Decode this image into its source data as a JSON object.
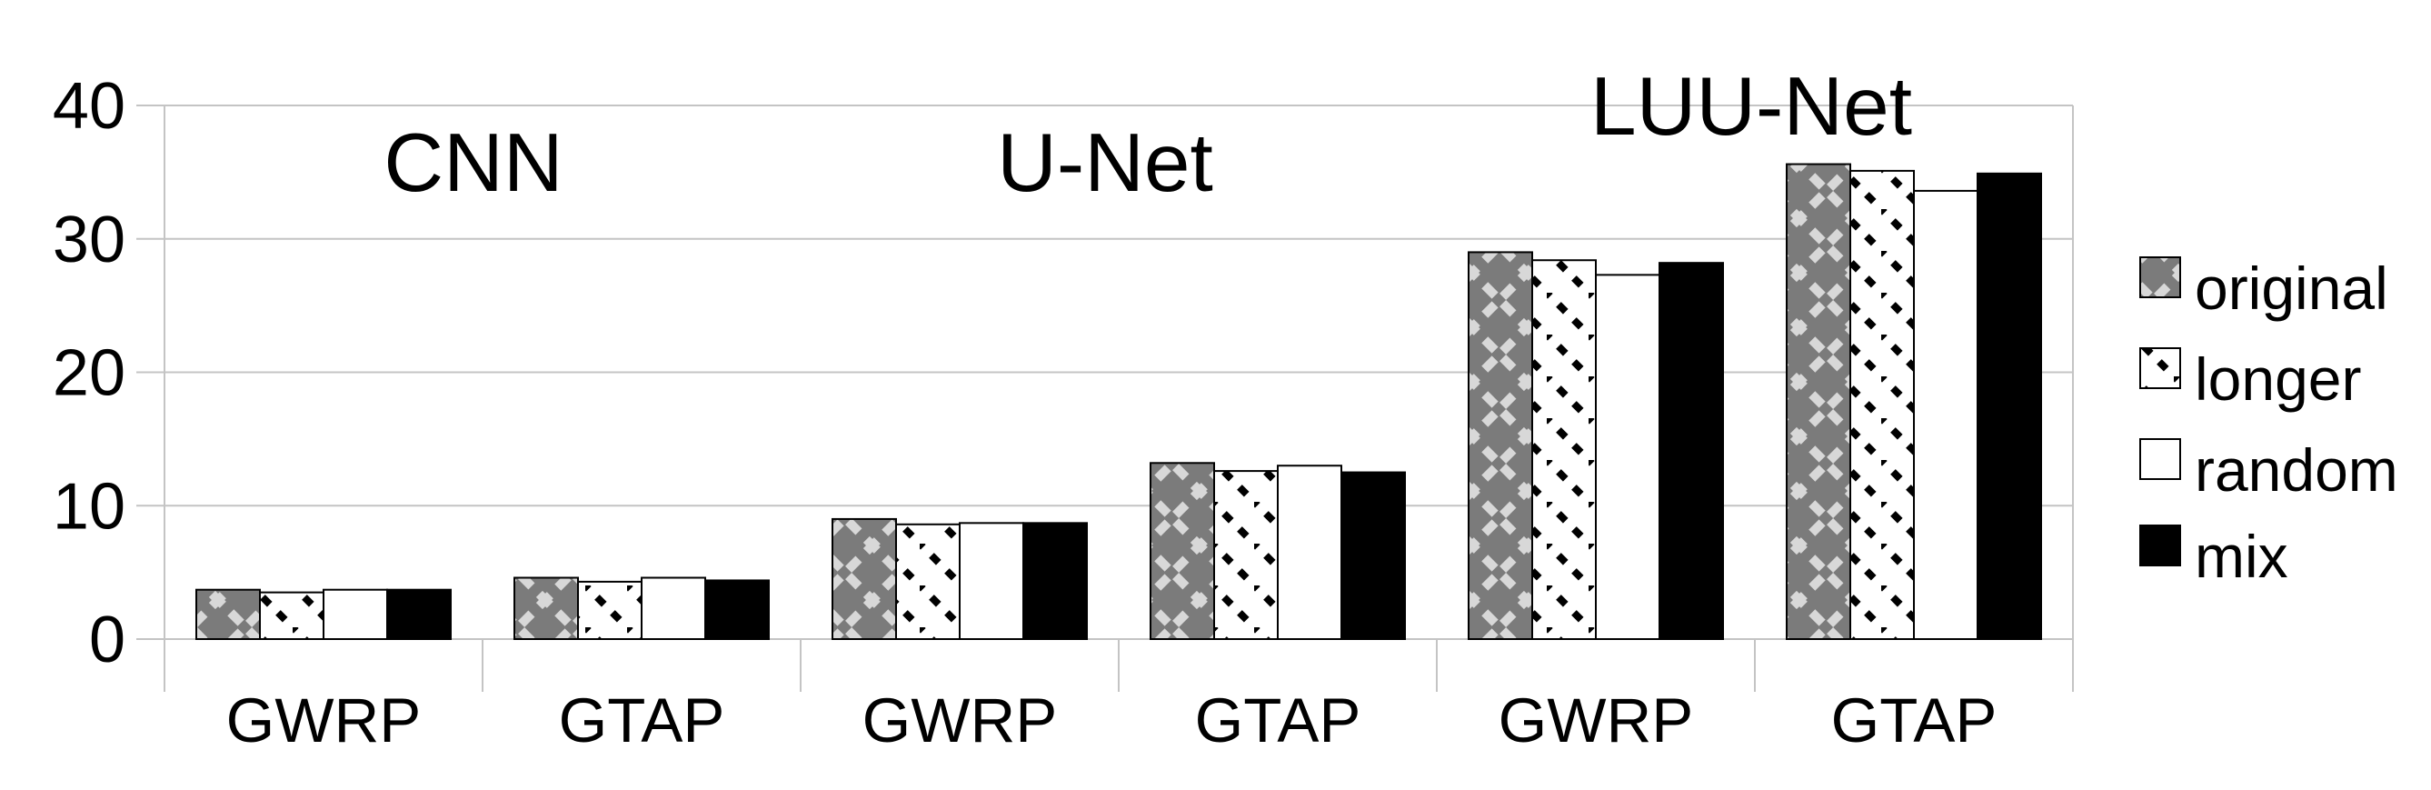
{
  "chart_data": {
    "type": "bar",
    "title": "",
    "xlabel": "",
    "ylabel": "",
    "group_titles": [
      "CNN",
      "U-Net",
      "LUU-Net"
    ],
    "categories": [
      "GWRP",
      "GTAP",
      "GWRP",
      "GTAP",
      "GWRP",
      "GTAP"
    ],
    "category_groups": [
      "CNN",
      "CNN",
      "U-Net",
      "U-Net",
      "LUU-Net",
      "LUU-Net"
    ],
    "series": [
      {
        "name": "original",
        "style": "gray-diagonal-lattice",
        "values": [
          3.7,
          4.6,
          9.0,
          13.2,
          29.0,
          35.6
        ]
      },
      {
        "name": "longer",
        "style": "white-black-diagonal-dashes",
        "values": [
          3.5,
          4.3,
          8.6,
          12.6,
          28.4,
          35.1
        ]
      },
      {
        "name": "random",
        "style": "plain-white",
        "values": [
          3.7,
          4.6,
          8.7,
          13.0,
          27.3,
          33.6
        ]
      },
      {
        "name": "mix",
        "style": "solid-black",
        "values": [
          3.7,
          4.4,
          8.7,
          12.5,
          28.2,
          34.9
        ]
      }
    ],
    "ylim": [
      0,
      40
    ],
    "yticks": [
      0,
      10,
      20,
      30,
      40
    ],
    "grid": "horizontal-light-gray",
    "legend_position": "right",
    "legend": [
      "original",
      "longer",
      "random",
      "mix"
    ]
  },
  "colors": {
    "background": "#ffffff",
    "grid": "#c4c4c4",
    "text": "#000000",
    "bar_gray": "#7b7b7b",
    "bar_pattern_light": "#d8d8d8",
    "bar_black": "#000000",
    "bar_white": "#ffffff",
    "bar_border": "#000000"
  }
}
